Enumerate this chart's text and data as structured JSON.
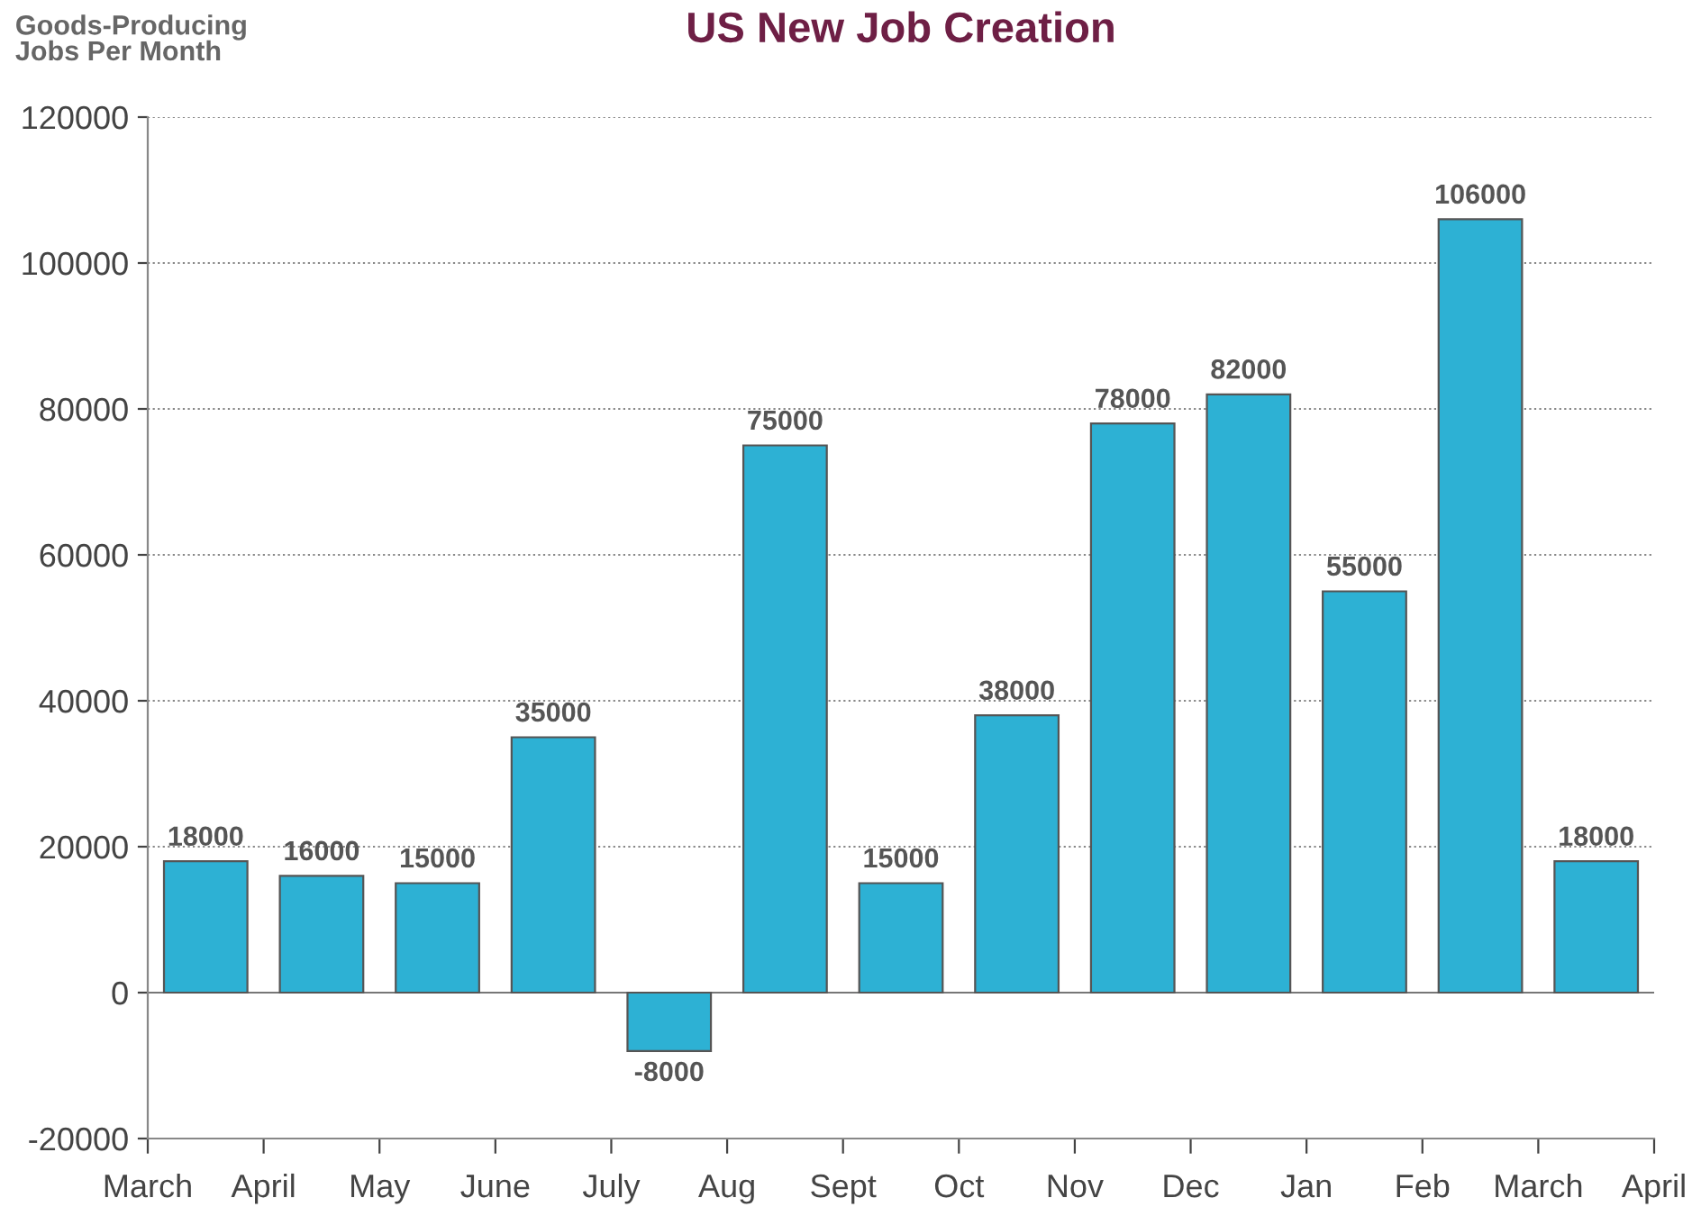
{
  "chart_data": {
    "type": "bar",
    "title": "US New Job Creation",
    "ylabel": "Goods-Producing\nJobs Per Month",
    "categories": [
      "March",
      "April",
      "May",
      "June",
      "July",
      "Aug",
      "Sept",
      "Oct",
      "Nov",
      "Dec",
      "Jan",
      "Feb",
      "March"
    ],
    "values": [
      18000,
      16000,
      15000,
      35000,
      -8000,
      75000,
      15000,
      38000,
      78000,
      82000,
      55000,
      106000,
      18000
    ],
    "color": "#2db1d4",
    "data_labels": true,
    "annotations": [
      "April"
    ],
    "ylim": [
      -20000,
      120000
    ],
    "yticks": [
      -20000,
      0,
      20000,
      40000,
      60000,
      80000,
      100000,
      120000
    ],
    "grid": "y"
  }
}
